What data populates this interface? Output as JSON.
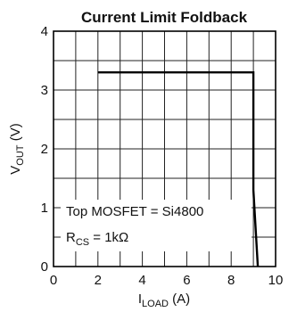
{
  "chart_data": {
    "type": "line",
    "title": "Current Limit Foldback",
    "xlabel": {
      "main": "I",
      "sub": "LOAD",
      "unit": " (A)"
    },
    "ylabel": {
      "main": "V",
      "sub": "OUT",
      "unit": " (V)"
    },
    "xlim": [
      0,
      10
    ],
    "ylim": [
      0,
      4
    ],
    "x_ticks": [
      "0",
      "2",
      "4",
      "6",
      "8",
      "10"
    ],
    "y_ticks": [
      "0",
      "1",
      "2",
      "3",
      "4"
    ],
    "grid": true,
    "series": [
      {
        "x": [
          2.0,
          9.0,
          9.0,
          9.2
        ],
        "y": [
          3.3,
          3.3,
          1.3,
          0.0
        ]
      }
    ],
    "annotations": [
      {
        "text": "Top MOSFET = Si4800"
      },
      {
        "main": "R",
        "sub": "CS",
        "rest": " = 1kΩ"
      }
    ]
  }
}
